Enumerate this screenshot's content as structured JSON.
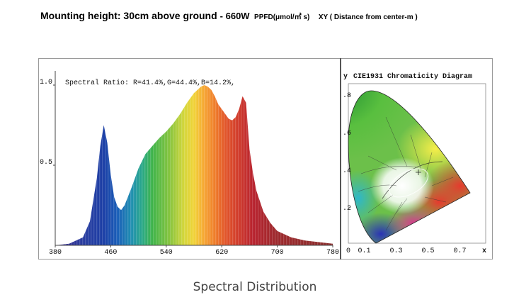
{
  "header": {
    "title": "Mounting height: 30cm above ground",
    "power": "- 660W",
    "unit": "PPFD(μmol/㎡ s)",
    "xy_label": "XY ( Distance from center-m )"
  },
  "caption": "Spectral Distribution",
  "chart_data": [
    {
      "type": "area",
      "title": "",
      "annotation": "Spectral Ratio:  R=41.4%,G=44.4%,B=14.2%,",
      "xlim": [
        380,
        780
      ],
      "ylim": [
        0,
        1.0
      ],
      "x_ticks": [
        "380",
        "460",
        "540",
        "620",
        "700",
        "780"
      ],
      "y_ticks": [
        "1.0",
        "0.5"
      ],
      "grid": false,
      "x": [
        380,
        400,
        420,
        430,
        440,
        445,
        450,
        455,
        460,
        465,
        470,
        475,
        480,
        490,
        500,
        510,
        520,
        530,
        540,
        550,
        560,
        570,
        580,
        590,
        595,
        600,
        605,
        610,
        615,
        620,
        625,
        630,
        635,
        640,
        645,
        650,
        655,
        660,
        665,
        670,
        680,
        690,
        700,
        720,
        740,
        760,
        780
      ],
      "y": [
        0.0,
        0.01,
        0.05,
        0.15,
        0.42,
        0.62,
        0.75,
        0.64,
        0.44,
        0.3,
        0.24,
        0.22,
        0.25,
        0.36,
        0.48,
        0.57,
        0.62,
        0.67,
        0.71,
        0.76,
        0.82,
        0.89,
        0.95,
        0.99,
        1.0,
        0.99,
        0.97,
        0.93,
        0.88,
        0.85,
        0.82,
        0.79,
        0.78,
        0.8,
        0.85,
        0.93,
        0.89,
        0.6,
        0.45,
        0.34,
        0.21,
        0.14,
        0.09,
        0.05,
        0.03,
        0.02,
        0.01
      ]
    },
    {
      "type": "scatter",
      "title": "CIE1931 Chromaticity Diagram",
      "xlabel": "x",
      "ylabel": "y",
      "x_ticks": [
        "0",
        "0.1",
        "0.3",
        "0.5",
        "0.7"
      ],
      "y_ticks": [
        ".8",
        ".6",
        ".4",
        ".2"
      ]
    }
  ],
  "colors": {
    "blue": "#1c3fa6",
    "green": "#3fb44a",
    "orange": "#ef7d2a",
    "red": "#b8232f"
  }
}
